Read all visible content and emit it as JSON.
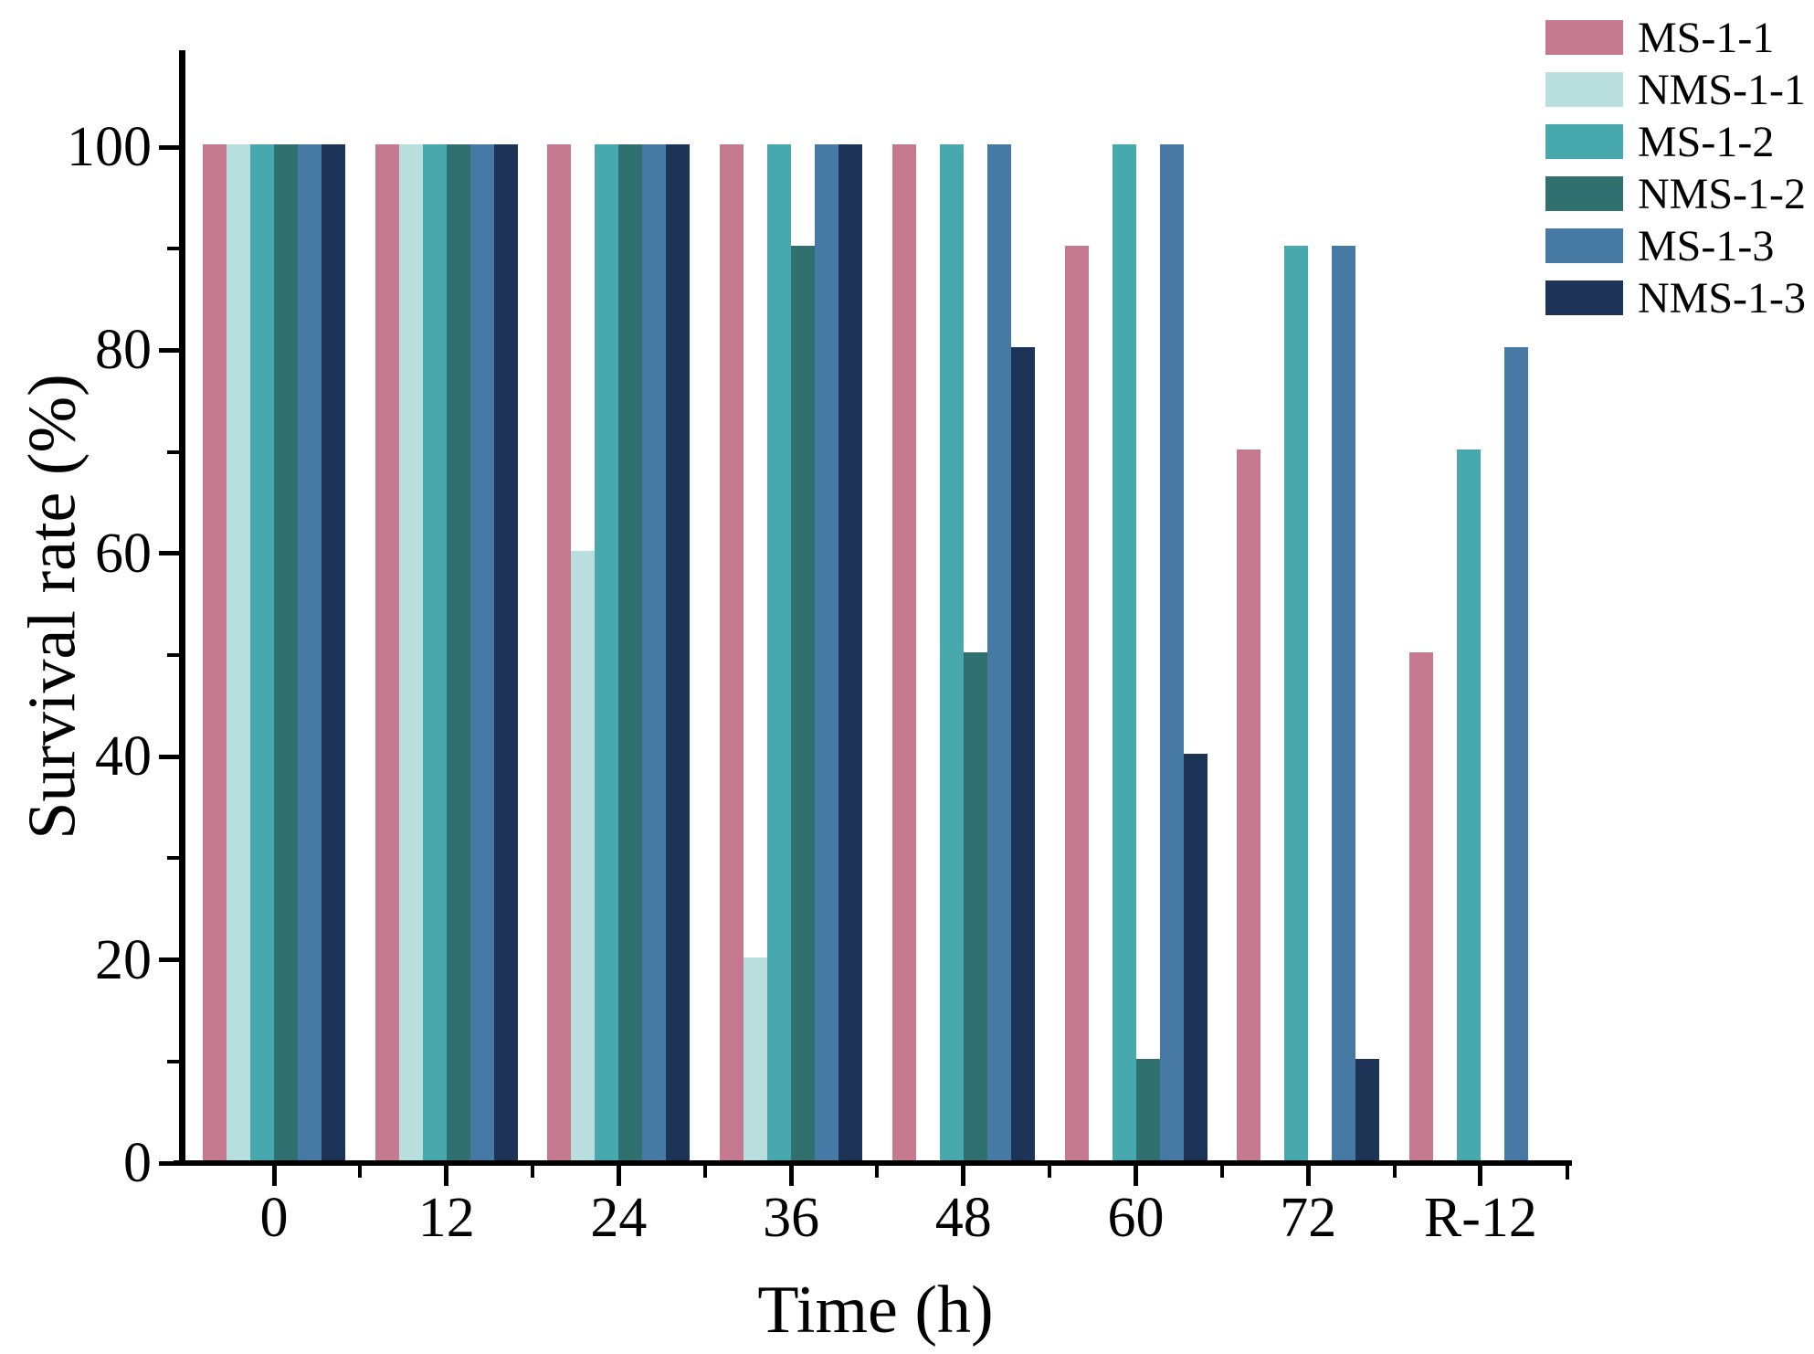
{
  "figure": {
    "background_color": "#ffffff",
    "axis_color": "#000000",
    "text_color": "#000000"
  },
  "chart_data": {
    "type": "bar",
    "title": "",
    "xlabel": "Time (h)",
    "ylabel": "Survival rate (%)",
    "categories": [
      "0",
      "12",
      "24",
      "36",
      "48",
      "60",
      "72",
      "R-12"
    ],
    "series": [
      {
        "name": "MS-1-1",
        "color": "#c4798f",
        "values": [
          100,
          100,
          100,
          100,
          100,
          90,
          70,
          50
        ]
      },
      {
        "name": "NMS-1-1",
        "color": "#b8dfde",
        "values": [
          100,
          100,
          60,
          20,
          0,
          0,
          0,
          0
        ]
      },
      {
        "name": "MS-1-2",
        "color": "#47a9ae",
        "values": [
          100,
          100,
          100,
          100,
          100,
          100,
          90,
          70
        ]
      },
      {
        "name": "NMS-1-2",
        "color": "#30706e",
        "values": [
          100,
          100,
          100,
          90,
          50,
          10,
          0,
          0
        ]
      },
      {
        "name": "MS-1-3",
        "color": "#4679a3",
        "values": [
          100,
          100,
          100,
          100,
          100,
          100,
          90,
          80
        ]
      },
      {
        "name": "NMS-1-3",
        "color": "#1e3456",
        "values": [
          100,
          100,
          100,
          100,
          80,
          40,
          10,
          0
        ]
      }
    ],
    "ylim": [
      0,
      110
    ],
    "yticks": [
      0,
      20,
      40,
      60,
      80,
      100
    ],
    "y_minor_ticks": [
      10,
      30,
      50,
      70,
      90
    ],
    "grid": false,
    "legend_position": "top-right"
  }
}
